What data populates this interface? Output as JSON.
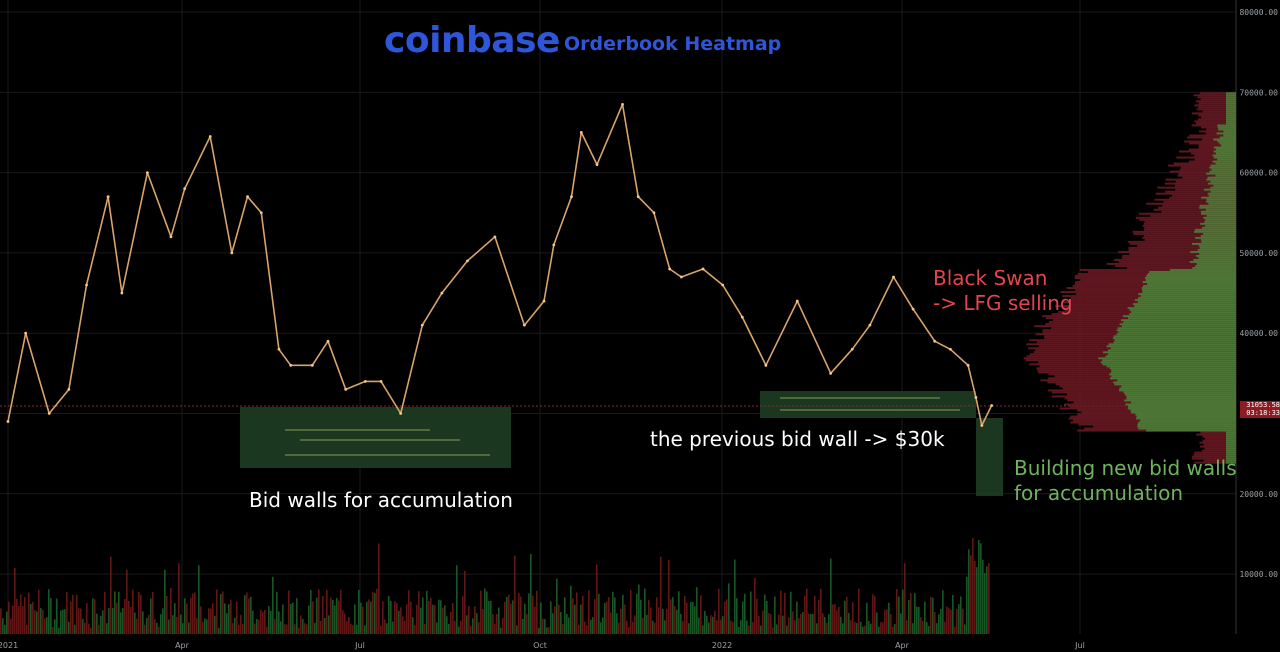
{
  "header": {
    "brand": "coinbase",
    "subtitle": "Orderbook Heatmap"
  },
  "annotations": {
    "left_walls": "Bid walls for accumulation",
    "previous_wall": "the previous bid wall -> $30k",
    "black_swan_line1": "Black Swan",
    "black_swan_line2": "-> LFG selling",
    "new_walls_line1": "Building new bid walls",
    "new_walls_line2": "for accumulation"
  },
  "price_tag": {
    "price": "31053.58",
    "countdown": "03:18:33"
  },
  "colors": {
    "background": "#000000",
    "bid_wall_fill": "#1f3d24",
    "annotation_red": "#e0464c",
    "annotation_green": "#6fb35e",
    "brand_blue": "#2f55d8",
    "profile_red": "#6e1a25",
    "profile_green": "#4c7a37"
  },
  "chart_data": {
    "type": "line",
    "title": "Orderbook Heatmap",
    "xlabel": "",
    "ylabel": "",
    "ylim": [
      0,
      80000
    ],
    "grid": true,
    "x_ticks": [
      "2021",
      "Apr",
      "Jul",
      "Oct",
      "2022",
      "Apr",
      "Jul"
    ],
    "y_ticks": [
      "80000.00",
      "70000.00",
      "60000.00",
      "50000.00",
      "40000.00",
      "30000.00",
      "20000.00",
      "10000.00"
    ],
    "series": [
      {
        "values_x": [
          "2021-01-01",
          "2021-01-10",
          "2021-01-22",
          "2021-02-01",
          "2021-02-10",
          "2021-02-21",
          "2021-02-28",
          "2021-03-13",
          "2021-03-25",
          "2021-04-01",
          "2021-04-14",
          "2021-04-25",
          "2021-05-03",
          "2021-05-10",
          "2021-05-19",
          "2021-05-25",
          "2021-06-05",
          "2021-06-13",
          "2021-06-22",
          "2021-07-02",
          "2021-07-10",
          "2021-07-20",
          "2021-07-31",
          "2021-08-10",
          "2021-08-23",
          "2021-09-06",
          "2021-09-21",
          "2021-10-01",
          "2021-10-06",
          "2021-10-15",
          "2021-10-20",
          "2021-10-28",
          "2021-11-10",
          "2021-11-18",
          "2021-11-26",
          "2021-12-04",
          "2021-12-10",
          "2021-12-21",
          "2021-12-31",
          "2022-01-10",
          "2022-01-22",
          "2022-02-07",
          "2022-02-24",
          "2022-03-07",
          "2022-03-16",
          "2022-03-28",
          "2022-04-07",
          "2022-04-18",
          "2022-04-26",
          "2022-05-05",
          "2022-05-09",
          "2022-05-12",
          "2022-05-17"
        ],
        "values": [
          29000,
          40000,
          30000,
          33000,
          46000,
          57000,
          45000,
          60000,
          52000,
          58000,
          64500,
          50000,
          57000,
          55000,
          38000,
          36000,
          36000,
          39000,
          33000,
          34000,
          34000,
          30000,
          41000,
          45000,
          49000,
          52000,
          41000,
          44000,
          51000,
          57000,
          65000,
          61000,
          68500,
          57000,
          55000,
          48000,
          47000,
          48000,
          46000,
          42000,
          36000,
          44000,
          35000,
          38000,
          41000,
          47000,
          43000,
          39000,
          38000,
          36000,
          32000,
          28500,
          31000
        ]
      }
    ]
  }
}
